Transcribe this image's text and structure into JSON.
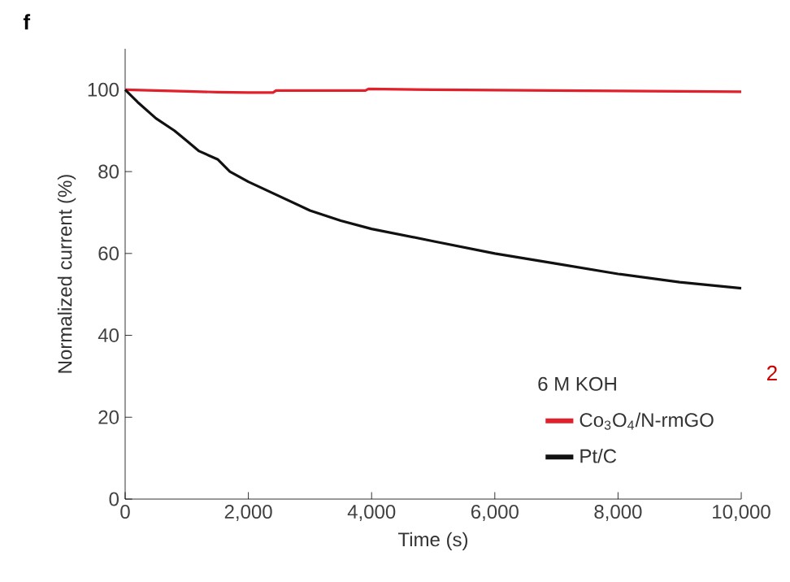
{
  "chart_data": {
    "type": "line",
    "xlabel": "Time (s)",
    "ylabel": "Normalized current (%)",
    "legend_title": "6 M KOH",
    "legend": "bottom right",
    "xlim": [
      0,
      10000
    ],
    "ylim": [
      0,
      110
    ],
    "xticks": [
      0,
      {
        "value": 2000,
        "label": "2,000"
      },
      {
        "value": 4000,
        "label": "4,000"
      },
      {
        "value": 6000,
        "label": "6,000"
      },
      {
        "value": 8000,
        "label": "8,000"
      },
      {
        "value": 10000,
        "label": "10,000"
      }
    ],
    "yticks": [
      0,
      20,
      40,
      60,
      80,
      100
    ],
    "annotations": [
      "f",
      "2"
    ],
    "series": [
      {
        "name": "Co$_{3}$O$_{4}$/N-rmGO",
        "color": "#e0202a",
        "x": [
          0,
          500,
          1000,
          1500,
          2000,
          2400,
          2450,
          3000,
          3900,
          3950,
          5000,
          6000,
          7000,
          8000,
          9000,
          10000
        ],
        "values": [
          100,
          99.8,
          99.6,
          99.4,
          99.3,
          99.3,
          99.8,
          99.8,
          99.8,
          100.2,
          100,
          99.9,
          99.8,
          99.7,
          99.6,
          99.5
        ]
      },
      {
        "name": "Pt/C",
        "color": "#111111",
        "x": [
          0,
          200,
          500,
          800,
          1000,
          1200,
          1500,
          1700,
          2000,
          2500,
          3000,
          3500,
          4000,
          5000,
          6000,
          7000,
          8000,
          9000,
          10000
        ],
        "values": [
          100,
          97,
          93,
          90,
          87.5,
          85,
          83,
          80,
          77.5,
          74,
          70.5,
          68,
          66,
          63,
          60,
          57.5,
          55,
          53,
          51.5
        ]
      }
    ]
  }
}
